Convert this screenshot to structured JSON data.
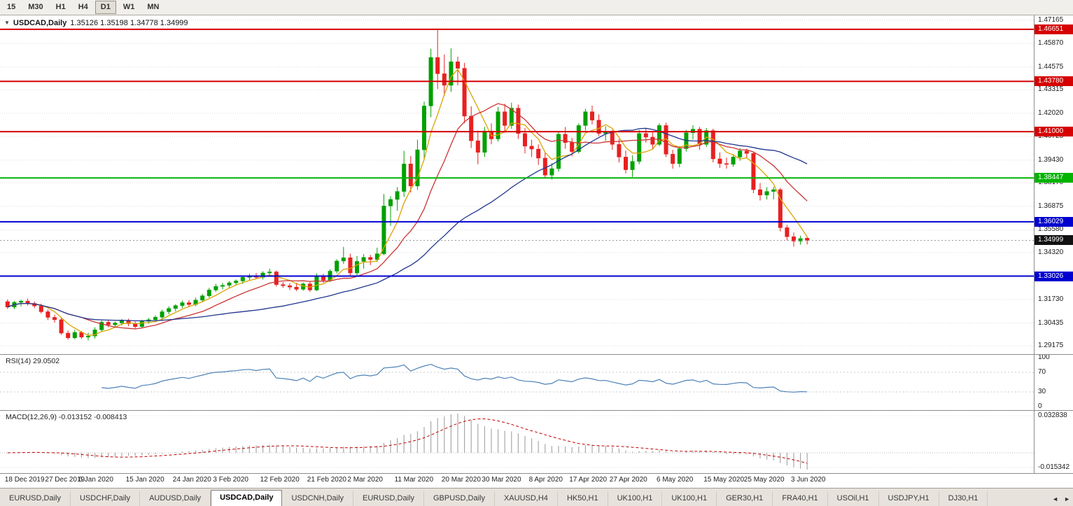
{
  "toolbar": {
    "timeframes": [
      "15",
      "M30",
      "H1",
      "H4",
      "D1",
      "W1",
      "MN"
    ],
    "active_timeframe": "D1"
  },
  "chart": {
    "symbol_period": "USDCAD,Daily",
    "ohlc": "1.35126 1.35198 1.34778 1.34999"
  },
  "price_axis": {
    "labels": [
      "1.47165",
      "1.45870",
      "1.44575",
      "1.43315",
      "1.42020",
      "1.40725",
      "1.39430",
      "1.38170",
      "1.36875",
      "1.35580",
      "1.34320",
      "1.31730",
      "1.30435",
      "1.29175"
    ],
    "current_price": "1.34999"
  },
  "levels": [
    {
      "value": 1.46651,
      "label": "1.46651",
      "color_key": "level_red"
    },
    {
      "value": 1.4378,
      "label": "1.43780",
      "color_key": "level_red"
    },
    {
      "value": 1.41,
      "label": "1.41000",
      "color_key": "level_red"
    },
    {
      "value": 1.38447,
      "label": "1.38447",
      "color_key": "level_green"
    },
    {
      "value": 1.36029,
      "label": "1.36029",
      "color_key": "level_blue"
    },
    {
      "value": 1.33026,
      "label": "1.33026",
      "color_key": "level_blue"
    }
  ],
  "indicators": {
    "rsi": {
      "name": "RSI(14)",
      "value": "29.0502",
      "period": 14,
      "axis_labels": [
        "100",
        "70",
        "30",
        "0"
      ]
    },
    "macd": {
      "name": "MACD(12,26,9)",
      "value": "-0.013152 -0.008413",
      "fast": 12,
      "slow": 26,
      "signal": 9,
      "axis_max_label": "0.032838",
      "axis_min_label": "-0.015342"
    }
  },
  "chart_data": {
    "type": "candlestick",
    "symbol": "USDCAD",
    "period": "Daily",
    "ohlc_current": {
      "open": 1.35126,
      "high": 1.35198,
      "low": 1.34778,
      "close": 1.34999
    },
    "y_axis_range": [
      1.2872,
      1.4742
    ],
    "moving_averages": [
      {
        "period": 5,
        "color_key": "ma_fast"
      },
      {
        "period": 12,
        "color_key": "ma_mid"
      },
      {
        "period": 34,
        "color_key": "ma_slow"
      }
    ],
    "x_ticks": [
      {
        "i": 0,
        "label": "18 Dec 2019"
      },
      {
        "i": 6,
        "label": "27 Dec 2019"
      },
      {
        "i": 11,
        "label": "6 Jan 2020"
      },
      {
        "i": 18,
        "label": "15 Jan 2020"
      },
      {
        "i": 25,
        "label": "24 Jan 2020"
      },
      {
        "i": 31,
        "label": "3 Feb 2020"
      },
      {
        "i": 38,
        "label": "12 Feb 2020"
      },
      {
        "i": 45,
        "label": "21 Feb 2020"
      },
      {
        "i": 51,
        "label": "2 Mar 2020"
      },
      {
        "i": 58,
        "label": "11 Mar 2020"
      },
      {
        "i": 65,
        "label": "20 Mar 2020"
      },
      {
        "i": 71,
        "label": "30 Mar 2020"
      },
      {
        "i": 78,
        "label": "8 Apr 2020"
      },
      {
        "i": 84,
        "label": "17 Apr 2020"
      },
      {
        "i": 90,
        "label": "27 Apr 2020"
      },
      {
        "i": 97,
        "label": "6 May 2020"
      },
      {
        "i": 104,
        "label": "15 May 2020"
      },
      {
        "i": 110,
        "label": "25 May 2020"
      },
      {
        "i": 117,
        "label": "3 Jun 2020"
      }
    ],
    "candles": [
      [
        1.3162,
        1.3174,
        1.3122,
        1.3132
      ],
      [
        1.3132,
        1.3166,
        1.312,
        1.3158
      ],
      [
        1.3158,
        1.3172,
        1.3136,
        1.3165
      ],
      [
        1.3165,
        1.3178,
        1.314,
        1.3152
      ],
      [
        1.3152,
        1.3163,
        1.3126,
        1.3138
      ],
      [
        1.3138,
        1.315,
        1.3096,
        1.3106
      ],
      [
        1.3106,
        1.3118,
        1.306,
        1.3075
      ],
      [
        1.3075,
        1.309,
        1.3046,
        1.3062
      ],
      [
        1.3062,
        1.3072,
        1.2978,
        1.2988
      ],
      [
        1.2988,
        1.3002,
        1.2952,
        1.2962
      ],
      [
        1.2962,
        1.3006,
        1.2954,
        1.2992
      ],
      [
        1.2992,
        1.3,
        1.2956,
        1.2966
      ],
      [
        1.2966,
        1.299,
        1.2948,
        1.2972
      ],
      [
        1.2972,
        1.302,
        1.2958,
        1.3006
      ],
      [
        1.3006,
        1.3058,
        1.2998,
        1.3048
      ],
      [
        1.3048,
        1.3062,
        1.302,
        1.3034
      ],
      [
        1.3034,
        1.3052,
        1.3022,
        1.3044
      ],
      [
        1.3044,
        1.3066,
        1.303,
        1.3058
      ],
      [
        1.3058,
        1.3068,
        1.3026,
        1.304
      ],
      [
        1.304,
        1.3052,
        1.3014,
        1.3024
      ],
      [
        1.3024,
        1.3062,
        1.3016,
        1.3054
      ],
      [
        1.3054,
        1.3072,
        1.304,
        1.3062
      ],
      [
        1.3062,
        1.3086,
        1.305,
        1.3076
      ],
      [
        1.3076,
        1.3118,
        1.3064,
        1.3106
      ],
      [
        1.3106,
        1.3136,
        1.3092,
        1.3124
      ],
      [
        1.3124,
        1.3148,
        1.3108,
        1.314
      ],
      [
        1.314,
        1.3168,
        1.3126,
        1.3156
      ],
      [
        1.3156,
        1.317,
        1.3132,
        1.3146
      ],
      [
        1.3146,
        1.3184,
        1.3136,
        1.317
      ],
      [
        1.317,
        1.3204,
        1.3158,
        1.3194
      ],
      [
        1.3194,
        1.3238,
        1.3184,
        1.3226
      ],
      [
        1.3226,
        1.326,
        1.3216,
        1.3246
      ],
      [
        1.3246,
        1.3266,
        1.323,
        1.3252
      ],
      [
        1.3252,
        1.3276,
        1.3238,
        1.3266
      ],
      [
        1.3266,
        1.3284,
        1.325,
        1.3276
      ],
      [
        1.3276,
        1.3304,
        1.326,
        1.3296
      ],
      [
        1.3296,
        1.3316,
        1.328,
        1.3304
      ],
      [
        1.3304,
        1.332,
        1.3286,
        1.3296
      ],
      [
        1.3296,
        1.333,
        1.3284,
        1.332
      ],
      [
        1.332,
        1.3344,
        1.3302,
        1.3326
      ],
      [
        1.3326,
        1.3334,
        1.3246,
        1.3256
      ],
      [
        1.3256,
        1.327,
        1.3238,
        1.325
      ],
      [
        1.325,
        1.3264,
        1.3226,
        1.3242
      ],
      [
        1.3242,
        1.3266,
        1.322,
        1.323
      ],
      [
        1.323,
        1.3268,
        1.3222,
        1.326
      ],
      [
        1.326,
        1.3274,
        1.3216,
        1.3226
      ],
      [
        1.3226,
        1.3318,
        1.322,
        1.3304
      ],
      [
        1.3304,
        1.3316,
        1.3266,
        1.328
      ],
      [
        1.328,
        1.334,
        1.327,
        1.333
      ],
      [
        1.333,
        1.3396,
        1.3318,
        1.3386
      ],
      [
        1.3386,
        1.3464,
        1.337,
        1.3404
      ],
      [
        1.3404,
        1.3426,
        1.3306,
        1.332
      ],
      [
        1.332,
        1.3414,
        1.33,
        1.3384
      ],
      [
        1.3384,
        1.3424,
        1.3344,
        1.3406
      ],
      [
        1.3406,
        1.342,
        1.3364,
        1.3394
      ],
      [
        1.3394,
        1.346,
        1.338,
        1.3426
      ],
      [
        1.3426,
        1.3756,
        1.3418,
        1.369
      ],
      [
        1.369,
        1.3744,
        1.358,
        1.3726
      ],
      [
        1.3726,
        1.3794,
        1.3664,
        1.377
      ],
      [
        1.377,
        1.3994,
        1.374,
        1.3922
      ],
      [
        1.3922,
        1.3966,
        1.3764,
        1.38
      ],
      [
        1.38,
        1.4056,
        1.378,
        1.4
      ],
      [
        1.4,
        1.4266,
        1.3946,
        1.4242
      ],
      [
        1.4242,
        1.4558,
        1.418,
        1.451
      ],
      [
        1.451,
        1.4669,
        1.4336,
        1.442
      ],
      [
        1.442,
        1.4526,
        1.4296,
        1.4356
      ],
      [
        1.4356,
        1.456,
        1.432,
        1.4486
      ],
      [
        1.4486,
        1.4514,
        1.4356,
        1.445
      ],
      [
        1.445,
        1.448,
        1.4146,
        1.4186
      ],
      [
        1.4186,
        1.424,
        1.401,
        1.405
      ],
      [
        1.405,
        1.4106,
        1.392,
        1.3986
      ],
      [
        1.3986,
        1.4126,
        1.396,
        1.4104
      ],
      [
        1.4104,
        1.4146,
        1.403,
        1.406
      ],
      [
        1.406,
        1.4236,
        1.4046,
        1.421
      ],
      [
        1.421,
        1.4254,
        1.4096,
        1.4134
      ],
      [
        1.4134,
        1.426,
        1.4116,
        1.423
      ],
      [
        1.423,
        1.425,
        1.406,
        1.409
      ],
      [
        1.409,
        1.412,
        1.398,
        1.402
      ],
      [
        1.402,
        1.4056,
        1.396,
        1.4004
      ],
      [
        1.4004,
        1.403,
        1.3916,
        1.3954
      ],
      [
        1.3954,
        1.3984,
        1.3846,
        1.386
      ],
      [
        1.386,
        1.3926,
        1.3836,
        1.3896
      ],
      [
        1.3896,
        1.41,
        1.388,
        1.4086
      ],
      [
        1.4086,
        1.4126,
        1.4006,
        1.404
      ],
      [
        1.404,
        1.4066,
        1.3964,
        1.399
      ],
      [
        1.399,
        1.4146,
        1.398,
        1.4134
      ],
      [
        1.4134,
        1.4226,
        1.4106,
        1.421
      ],
      [
        1.421,
        1.4244,
        1.414,
        1.4164
      ],
      [
        1.4164,
        1.4196,
        1.4076,
        1.409
      ],
      [
        1.409,
        1.413,
        1.405,
        1.4096
      ],
      [
        1.4096,
        1.411,
        1.4,
        1.403
      ],
      [
        1.403,
        1.406,
        1.393,
        1.396
      ],
      [
        1.396,
        1.3996,
        1.387,
        1.389
      ],
      [
        1.389,
        1.397,
        1.385,
        1.3936
      ],
      [
        1.3936,
        1.411,
        1.392,
        1.409
      ],
      [
        1.409,
        1.4116,
        1.404,
        1.407
      ],
      [
        1.407,
        1.4096,
        1.4006,
        1.403
      ],
      [
        1.403,
        1.4146,
        1.402,
        1.4134
      ],
      [
        1.4134,
        1.415,
        1.396,
        1.3976
      ],
      [
        1.3976,
        1.4,
        1.3896,
        1.3924
      ],
      [
        1.3924,
        1.402,
        1.3904,
        1.4006
      ],
      [
        1.4006,
        1.411,
        1.399,
        1.4094
      ],
      [
        1.4094,
        1.4136,
        1.4056,
        1.4114
      ],
      [
        1.4114,
        1.4126,
        1.4,
        1.403
      ],
      [
        1.403,
        1.412,
        1.4016,
        1.4106
      ],
      [
        1.4106,
        1.4116,
        1.393,
        1.395
      ],
      [
        1.395,
        1.3986,
        1.39,
        1.3924
      ],
      [
        1.3924,
        1.3956,
        1.3896,
        1.392
      ],
      [
        1.392,
        1.3976,
        1.3906,
        1.396
      ],
      [
        1.396,
        1.401,
        1.394,
        1.3994
      ],
      [
        1.3994,
        1.4006,
        1.3956,
        1.398
      ],
      [
        1.398,
        1.399,
        1.376,
        1.378
      ],
      [
        1.378,
        1.3816,
        1.372,
        1.375
      ],
      [
        1.375,
        1.3794,
        1.3726,
        1.377
      ],
      [
        1.377,
        1.3796,
        1.3726,
        1.378
      ],
      [
        1.378,
        1.379,
        1.355,
        1.357
      ],
      [
        1.357,
        1.3586,
        1.35,
        1.352
      ],
      [
        1.352,
        1.3544,
        1.3466,
        1.3496
      ],
      [
        1.3496,
        1.3526,
        1.3476,
        1.351
      ],
      [
        1.35126,
        1.35198,
        1.34778,
        1.34999
      ]
    ]
  },
  "tabs": {
    "items": [
      {
        "label": "EURUSD,Daily",
        "active": false
      },
      {
        "label": "USDCHF,Daily",
        "active": false
      },
      {
        "label": "AUDUSD,Daily",
        "active": false
      },
      {
        "label": "USDCAD,Daily",
        "active": true
      },
      {
        "label": "USDCNH,Daily",
        "active": false
      },
      {
        "label": "EURUSD,Daily",
        "active": false
      },
      {
        "label": "GBPUSD,Daily",
        "active": false
      },
      {
        "label": "XAUUSD,H4",
        "active": false
      },
      {
        "label": "HK50,H1",
        "active": false
      },
      {
        "label": "UK100,H1",
        "active": false
      },
      {
        "label": "UK100,H1",
        "active": false
      },
      {
        "label": "GER30,H1",
        "active": false
      },
      {
        "label": "FRA40,H1",
        "active": false
      },
      {
        "label": "USOil,H1",
        "active": false
      },
      {
        "label": "USDJPY,H1",
        "active": false
      },
      {
        "label": "DJ30,H1",
        "active": false
      }
    ]
  },
  "colors": {
    "bull": "#00A000",
    "bear": "#E82020",
    "ma_fast": "#D9A300",
    "ma_mid": "#CC3333",
    "ma_slow": "#20368F",
    "rsi_line": "#4D82B8",
    "macd_hist": "#A8A8A8",
    "macd_signal": "#C00000",
    "level_red": "#D60000",
    "level_green": "#00B400",
    "level_blue": "#0000D0",
    "current_price_bg": "#111111",
    "grid": "#DCDCDC"
  }
}
